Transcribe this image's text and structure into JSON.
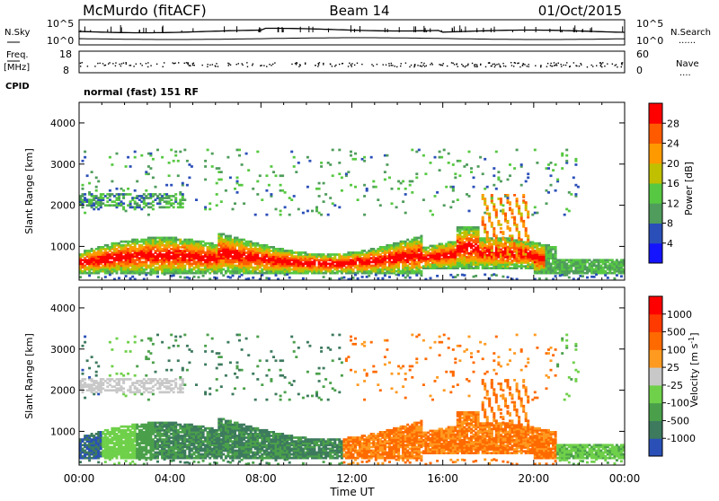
{
  "header": {
    "station": "McMurdo (fitACF)",
    "beam": "Beam 14",
    "date": "01/Oct/2015"
  },
  "summary_panel": {
    "left_labels": {
      "nsky": "N.Sky",
      "freq": "Freq.",
      "freq_unit": "[MHz]",
      "cpid": "CPID"
    },
    "right_labels": {
      "nsearch": "N.Search",
      "nave": "Nave"
    },
    "noise_ticks_left": [
      "10^5",
      "10^0"
    ],
    "noise_ticks_right": [
      "10^5",
      "10^0"
    ],
    "freq_ticks": [
      "18",
      "8"
    ],
    "nave_ticks": [
      "60",
      "0"
    ],
    "cpid_text": "normal (fast) 151 RF"
  },
  "colors": {
    "power_scale": [
      "#1414ff",
      "#2b4fb8",
      "#4f9c5c",
      "#56c841",
      "#c0c000",
      "#ff9900",
      "#ff5a00",
      "#ff0000"
    ],
    "velocity_scale": [
      "#2a50b8",
      "#3d7a5e",
      "#4aa04a",
      "#6fd04a",
      "#c8c8c8",
      "#ff9a20",
      "#ff6a00",
      "#ff3a00",
      "#ff0000"
    ]
  },
  "chart_data": [
    {
      "type": "heatmap",
      "title": "",
      "xlabel": "Time UT",
      "ylabel": "Slant Range [km]",
      "x_ticks": [
        "00:00",
        "04:00",
        "08:00",
        "12:00",
        "16:00",
        "20:00",
        "00:00"
      ],
      "y_ticks": [
        "1000",
        "2000",
        "3000",
        "4000"
      ],
      "xlim": [
        0,
        24
      ],
      "ylim": [
        180,
        4500
      ],
      "colorbar": {
        "label": "Power [dB]",
        "ticks": [
          "4",
          "8",
          "12",
          "16",
          "20",
          "24",
          "28"
        ],
        "range": [
          0,
          32
        ]
      }
    },
    {
      "type": "heatmap",
      "title": "",
      "xlabel": "Time UT",
      "ylabel": "Slant Range [km]",
      "x_ticks": [
        "00:00",
        "04:00",
        "08:00",
        "12:00",
        "16:00",
        "20:00",
        "00:00"
      ],
      "y_ticks": [
        "1000",
        "2000",
        "3000",
        "4000"
      ],
      "xlim": [
        0,
        24
      ],
      "ylim": [
        180,
        4500
      ],
      "colorbar": {
        "label": "Velocity [m s^-1]",
        "ticks": [
          "1000",
          "500",
          "100",
          "25",
          "-25",
          "-100",
          "-500",
          "-1000"
        ]
      }
    }
  ]
}
